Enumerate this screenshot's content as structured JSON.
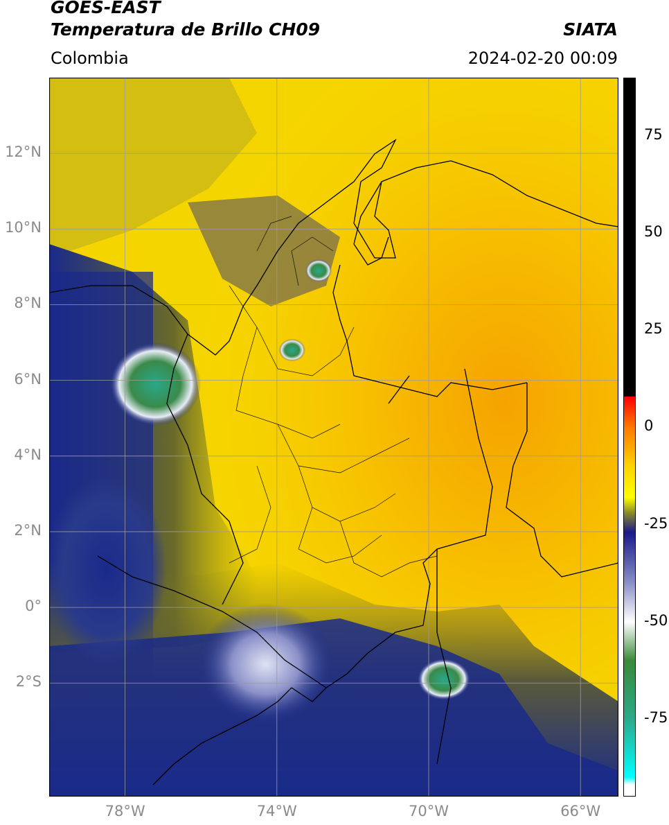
{
  "header": {
    "satellite": "GOES-EAST",
    "product": "Temperatura de Brillo CH09",
    "agency": "SIATA",
    "region": "Colombia",
    "timestamp": "2024-02-20 00:09"
  },
  "map": {
    "lon_range": [
      -80,
      -65
    ],
    "lat_range": [
      -5,
      14
    ],
    "lon_ticks": [
      -78,
      -74,
      -70,
      -66
    ],
    "lat_ticks": [
      12,
      10,
      8,
      6,
      4,
      2,
      0,
      -2
    ],
    "lon_tick_labels": [
      "78°W",
      "74°W",
      "70°W",
      "66°W"
    ],
    "lat_tick_labels": [
      "12°N",
      "10°N",
      "8°N",
      "6°N",
      "4°N",
      "2°N",
      "0°",
      "2°S"
    ],
    "gridlines": true,
    "colors": {
      "background": "#f4c40a",
      "warm_core": "#f6a800",
      "cloud_dark_olive": "#7a7a1a",
      "cloud_blue": "#1a2a8a",
      "cloud_white": "#e8ecf6",
      "cloud_green": "#3a8a4a",
      "border_line": "#000000",
      "grid_line": "#9a9a9a"
    },
    "cold_cloud_features": [
      {
        "lon": -77.2,
        "lat": 5.9,
        "rx": 1.2,
        "ry": 1.1,
        "kind": "green-core"
      },
      {
        "lon": -72.9,
        "lat": 8.9,
        "rx": 0.35,
        "ry": 0.3,
        "kind": "green-core"
      },
      {
        "lon": -73.6,
        "lat": 6.8,
        "rx": 0.35,
        "ry": 0.3,
        "kind": "green-core"
      },
      {
        "lon": -69.6,
        "lat": -1.9,
        "rx": 0.7,
        "ry": 0.55,
        "kind": "green-core"
      },
      {
        "lon": -74.3,
        "lat": -1.5,
        "rx": 1.8,
        "ry": 1.6,
        "kind": "white-cloud"
      },
      {
        "lon": -78.5,
        "lat": 1.0,
        "rx": 1.6,
        "ry": 2.5,
        "kind": "blue-cloud"
      }
    ]
  },
  "colorbar": {
    "ticks": [
      75,
      50,
      25,
      0,
      -25,
      -50,
      -75
    ],
    "tick_labels": [
      "75",
      "50",
      "25",
      "0",
      "-25",
      "-50",
      "-75"
    ],
    "range": [
      -95,
      90
    ],
    "stops": [
      {
        "value": 90,
        "color": "#000000"
      },
      {
        "value": 8,
        "color": "#000000"
      },
      {
        "value": 7.9,
        "color": "#ff0000"
      },
      {
        "value": 0,
        "color": "#ff7a00"
      },
      {
        "value": -10,
        "color": "#ffd400"
      },
      {
        "value": -18,
        "color": "#ffff00"
      },
      {
        "value": -22,
        "color": "#8a8a2a"
      },
      {
        "value": -27,
        "color": "#1a1a8a"
      },
      {
        "value": -40,
        "color": "#8a90c8"
      },
      {
        "value": -50,
        "color": "#ffffff"
      },
      {
        "value": -60,
        "color": "#3a8a3a"
      },
      {
        "value": -75,
        "color": "#2aaa8a"
      },
      {
        "value": -90,
        "color": "#00ffff"
      },
      {
        "value": -92,
        "color": "#ffffff"
      },
      {
        "value": -95,
        "color": "#ffffff"
      }
    ]
  }
}
